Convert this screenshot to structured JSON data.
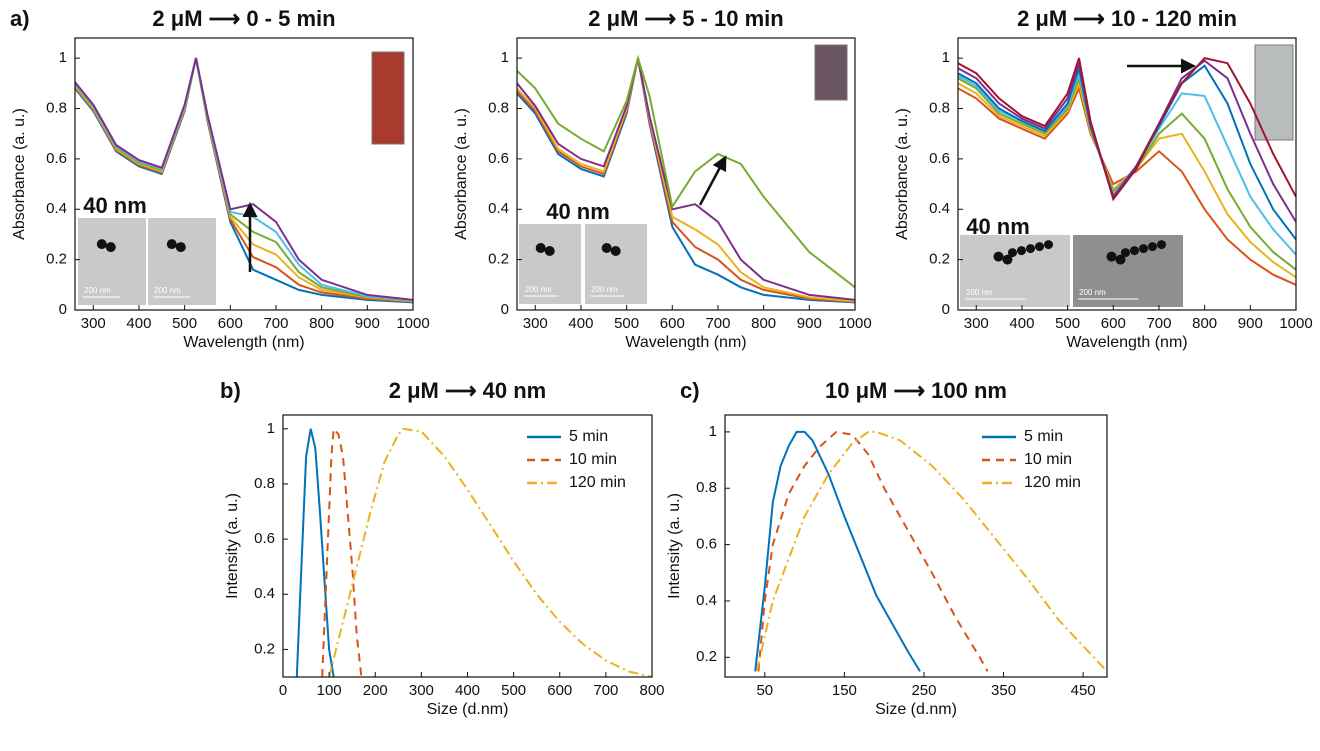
{
  "chart_data": [
    {
      "type": "line",
      "panel_label": "a)",
      "title": "2 μM ⟶ 0 - 5 min",
      "xlabel": "Wavelength (nm)",
      "ylabel": "Absorbance (a. u.)",
      "xlim": [
        260,
        1000
      ],
      "ylim": [
        0,
        1.08
      ],
      "xticks": [
        300,
        400,
        500,
        600,
        700,
        800,
        900,
        1000
      ],
      "yticks": [
        0,
        0.2,
        0.4,
        0.6,
        0.8,
        1
      ],
      "inset": {
        "label": "40 nm",
        "scale_bars": [
          "200 nm",
          "200 nm"
        ]
      },
      "x": [
        260,
        300,
        350,
        400,
        450,
        500,
        525,
        550,
        600,
        650,
        700,
        750,
        800,
        900,
        1000
      ],
      "series": [
        {
          "color": "#0072BD",
          "values": [
            0.88,
            0.79,
            0.63,
            0.57,
            0.54,
            0.79,
            1,
            0.75,
            0.35,
            0.16,
            0.12,
            0.08,
            0.06,
            0.04,
            0.03
          ]
        },
        {
          "color": "#D95319",
          "values": [
            0.885,
            0.795,
            0.635,
            0.575,
            0.545,
            0.795,
            1,
            0.755,
            0.36,
            0.21,
            0.17,
            0.1,
            0.07,
            0.045,
            0.033
          ]
        },
        {
          "color": "#EDB120",
          "values": [
            0.89,
            0.8,
            0.64,
            0.58,
            0.55,
            0.8,
            1,
            0.76,
            0.37,
            0.26,
            0.22,
            0.13,
            0.08,
            0.05,
            0.035
          ]
        },
        {
          "color": "#77AC30",
          "values": [
            0.895,
            0.805,
            0.645,
            0.585,
            0.555,
            0.805,
            1,
            0.765,
            0.38,
            0.31,
            0.27,
            0.15,
            0.09,
            0.052,
            0.037
          ]
        },
        {
          "color": "#4DBEEE",
          "values": [
            0.9,
            0.81,
            0.65,
            0.59,
            0.56,
            0.81,
            1,
            0.77,
            0.39,
            0.37,
            0.31,
            0.18,
            0.1,
            0.055,
            0.038
          ]
        },
        {
          "color": "#7E2F8E",
          "values": [
            0.905,
            0.815,
            0.655,
            0.595,
            0.565,
            0.815,
            1,
            0.775,
            0.4,
            0.42,
            0.35,
            0.2,
            0.12,
            0.06,
            0.04
          ]
        }
      ]
    },
    {
      "type": "line",
      "title": "2 μM ⟶ 5 - 10 min",
      "xlabel": "Wavelength (nm)",
      "ylabel": "Absorbance (a. u.)",
      "xlim": [
        260,
        1000
      ],
      "ylim": [
        0,
        1.08
      ],
      "xticks": [
        300,
        400,
        500,
        600,
        700,
        800,
        900,
        1000
      ],
      "yticks": [
        0,
        0.2,
        0.4,
        0.6,
        0.8,
        1
      ],
      "inset": {
        "label": "40 nm",
        "scale_bars": [
          "200 nm",
          "200 nm"
        ]
      },
      "x": [
        260,
        300,
        350,
        400,
        450,
        500,
        525,
        550,
        600,
        650,
        700,
        750,
        800,
        900,
        1000
      ],
      "series": [
        {
          "color": "#0072BD",
          "values": [
            0.86,
            0.78,
            0.62,
            0.56,
            0.53,
            0.78,
            1,
            0.74,
            0.33,
            0.18,
            0.14,
            0.09,
            0.06,
            0.04,
            0.03
          ]
        },
        {
          "color": "#D95319",
          "values": [
            0.87,
            0.79,
            0.63,
            0.57,
            0.54,
            0.79,
            1,
            0.75,
            0.35,
            0.25,
            0.2,
            0.12,
            0.08,
            0.045,
            0.033
          ]
        },
        {
          "color": "#EDB120",
          "values": [
            0.88,
            0.8,
            0.64,
            0.58,
            0.55,
            0.8,
            1,
            0.76,
            0.37,
            0.32,
            0.26,
            0.15,
            0.09,
            0.05,
            0.035
          ]
        },
        {
          "color": "#7E2F8E",
          "values": [
            0.9,
            0.81,
            0.66,
            0.6,
            0.57,
            0.81,
            1,
            0.77,
            0.4,
            0.42,
            0.35,
            0.2,
            0.12,
            0.06,
            0.04
          ]
        },
        {
          "color": "#77AC30",
          "values": [
            0.95,
            0.88,
            0.74,
            0.68,
            0.63,
            0.83,
            1,
            0.85,
            0.41,
            0.55,
            0.62,
            0.58,
            0.45,
            0.23,
            0.09
          ]
        }
      ]
    },
    {
      "type": "line",
      "title": "2 μM ⟶ 10 - 120 min",
      "xlabel": "Wavelength (nm)",
      "ylabel": "Absorbance (a. u.)",
      "xlim": [
        260,
        1000
      ],
      "ylim": [
        0,
        1.08
      ],
      "xticks": [
        300,
        400,
        500,
        600,
        700,
        800,
        900,
        1000
      ],
      "yticks": [
        0,
        0.2,
        0.4,
        0.6,
        0.8,
        1
      ],
      "inset": {
        "label": "40 nm",
        "scale_bars": [
          "200 nm",
          "200 nm"
        ]
      },
      "x": [
        260,
        300,
        350,
        400,
        450,
        500,
        525,
        550,
        600,
        650,
        700,
        750,
        800,
        850,
        900,
        950,
        1000
      ],
      "series": [
        {
          "color": "#D95319",
          "values": [
            0.88,
            0.84,
            0.76,
            0.72,
            0.68,
            0.78,
            0.88,
            0.7,
            0.5,
            0.55,
            0.63,
            0.55,
            0.4,
            0.28,
            0.2,
            0.14,
            0.1
          ]
        },
        {
          "color": "#EDB120",
          "values": [
            0.9,
            0.86,
            0.77,
            0.73,
            0.69,
            0.79,
            0.9,
            0.71,
            0.48,
            0.56,
            0.68,
            0.7,
            0.55,
            0.38,
            0.27,
            0.19,
            0.13
          ]
        },
        {
          "color": "#77AC30",
          "values": [
            0.92,
            0.88,
            0.78,
            0.74,
            0.7,
            0.8,
            0.92,
            0.72,
            0.47,
            0.56,
            0.7,
            0.78,
            0.68,
            0.48,
            0.33,
            0.23,
            0.16
          ]
        },
        {
          "color": "#4DBEEE",
          "values": [
            0.93,
            0.89,
            0.79,
            0.75,
            0.71,
            0.81,
            0.94,
            0.73,
            0.46,
            0.57,
            0.72,
            0.86,
            0.85,
            0.65,
            0.45,
            0.32,
            0.22
          ]
        },
        {
          "color": "#0072BD",
          "values": [
            0.94,
            0.9,
            0.8,
            0.75,
            0.71,
            0.82,
            0.96,
            0.73,
            0.45,
            0.57,
            0.73,
            0.9,
            0.97,
            0.82,
            0.58,
            0.4,
            0.28
          ]
        },
        {
          "color": "#7E2F8E",
          "values": [
            0.96,
            0.92,
            0.82,
            0.76,
            0.72,
            0.84,
            0.98,
            0.74,
            0.45,
            0.57,
            0.74,
            0.92,
            0.99,
            0.92,
            0.7,
            0.5,
            0.35
          ]
        },
        {
          "color": "#A2142F",
          "values": [
            0.98,
            0.94,
            0.84,
            0.77,
            0.73,
            0.86,
            1,
            0.75,
            0.44,
            0.56,
            0.74,
            0.9,
            1,
            0.98,
            0.82,
            0.62,
            0.45
          ]
        }
      ]
    },
    {
      "type": "line",
      "panel_label": "b)",
      "title": "2 μM ⟶ 40 nm",
      "xlabel": "Size (d.nm)",
      "ylabel": "Intensity (a. u.)",
      "xlim": [
        0,
        800
      ],
      "ylim": [
        0.1,
        1.05
      ],
      "xticks": [
        0,
        100,
        200,
        300,
        400,
        500,
        600,
        700,
        800
      ],
      "yticks": [
        0.2,
        0.4,
        0.6,
        0.8,
        1
      ],
      "legend": "upper right",
      "series": [
        {
          "name": "5 min",
          "color": "#0072BD",
          "dash": "solid",
          "x": [
            30,
            40,
            50,
            60,
            70,
            80,
            90,
            100,
            110
          ],
          "values": [
            0.1,
            0.5,
            0.9,
            1,
            0.93,
            0.7,
            0.45,
            0.2,
            0.1
          ]
        },
        {
          "name": "10 min",
          "color": "#D95319",
          "dash": "dashed",
          "x": [
            85,
            95,
            105,
            110,
            120,
            130,
            140,
            150,
            160,
            170
          ],
          "values": [
            0.1,
            0.5,
            0.9,
            1,
            0.98,
            0.9,
            0.7,
            0.5,
            0.25,
            0.1
          ]
        },
        {
          "name": "120 min",
          "color": "#EDB120",
          "dash": "dashdot",
          "x": [
            100,
            130,
            160,
            190,
            220,
            250,
            260,
            300,
            350,
            400,
            450,
            500,
            550,
            600,
            650,
            700,
            750,
            800
          ],
          "values": [
            0.1,
            0.3,
            0.5,
            0.7,
            0.88,
            0.98,
            1,
            0.99,
            0.9,
            0.78,
            0.65,
            0.52,
            0.4,
            0.3,
            0.22,
            0.16,
            0.12,
            0.1
          ]
        }
      ]
    },
    {
      "type": "line",
      "panel_label": "c)",
      "title": "10 μM ⟶ 100 nm",
      "xlabel": "Size (d.nm)",
      "ylabel": "Intensity (a. u.)",
      "xlim": [
        0,
        480
      ],
      "ylim": [
        0.13,
        1.06
      ],
      "xticks": [
        50,
        150,
        250,
        350,
        450
      ],
      "yticks": [
        0.2,
        0.4,
        0.6,
        0.8,
        1
      ],
      "legend": "upper right",
      "series": [
        {
          "name": "5 min",
          "color": "#0072BD",
          "dash": "solid",
          "x": [
            38,
            50,
            60,
            70,
            80,
            90,
            100,
            110,
            130,
            150,
            170,
            190,
            210,
            230,
            245
          ],
          "values": [
            0.15,
            0.45,
            0.75,
            0.88,
            0.95,
            1,
            1,
            0.97,
            0.85,
            0.7,
            0.56,
            0.42,
            0.32,
            0.22,
            0.15
          ]
        },
        {
          "name": "10 min",
          "color": "#D95319",
          "dash": "dashed",
          "x": [
            42,
            50,
            60,
            80,
            100,
            120,
            140,
            160,
            180,
            200,
            230,
            260,
            290,
            320,
            330
          ],
          "values": [
            0.15,
            0.4,
            0.6,
            0.78,
            0.88,
            0.95,
            1,
            0.99,
            0.92,
            0.8,
            0.65,
            0.5,
            0.34,
            0.2,
            0.15
          ]
        },
        {
          "name": "120 min",
          "color": "#EDB120",
          "dash": "dashdot",
          "x": [
            40,
            60,
            80,
            100,
            130,
            160,
            180,
            190,
            220,
            260,
            300,
            340,
            380,
            420,
            480
          ],
          "values": [
            0.15,
            0.4,
            0.55,
            0.7,
            0.85,
            0.96,
            1,
            1,
            0.97,
            0.88,
            0.76,
            0.62,
            0.48,
            0.33,
            0.15
          ]
        }
      ]
    }
  ]
}
